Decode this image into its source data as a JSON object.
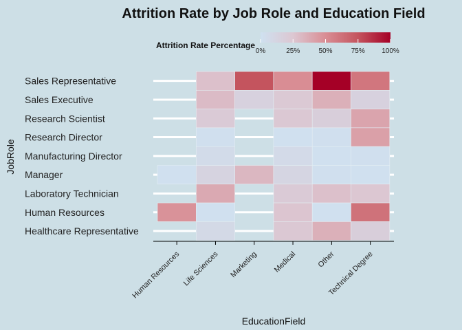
{
  "chart_data": {
    "type": "heatmap",
    "title": "Attrition Rate by Job Role and Education Field",
    "xlabel": "EducationField",
    "ylabel": "JobRole",
    "x_categories": [
      "Human Resources",
      "Life Sciences",
      "Marketing",
      "Medical",
      "Other",
      "Technical Degree"
    ],
    "y_categories": [
      "Sales Representative",
      "Sales Executive",
      "Research Scientist",
      "Research Director",
      "Manufacturing Director",
      "Manager",
      "Laboratory Technician",
      "Human Resources",
      "Healthcare Representative"
    ],
    "values": [
      [
        null,
        28,
        75,
        50,
        100,
        60
      ],
      [
        null,
        30,
        15,
        23,
        35,
        15
      ],
      [
        null,
        22,
        null,
        24,
        18,
        40
      ],
      [
        null,
        2,
        null,
        1,
        2,
        42
      ],
      [
        null,
        6,
        null,
        7,
        1,
        2
      ],
      [
        1,
        13,
        32,
        12,
        2,
        1
      ],
      [
        null,
        38,
        null,
        22,
        28,
        25
      ],
      [
        48,
        1,
        null,
        26,
        1,
        62
      ],
      [
        null,
        8,
        null,
        24,
        35,
        18
      ]
    ],
    "value_unit": "%",
    "legend": {
      "title": "Attrition Rate Percentage",
      "ticks": [
        "0%",
        "25%",
        "50%",
        "75%",
        "100%"
      ],
      "placement": "top"
    },
    "color_scale": {
      "low": "#cfe1f0",
      "mid": "#d8c9d3",
      "high": "#a50026"
    },
    "background": "#cddfe6",
    "grid": true
  }
}
